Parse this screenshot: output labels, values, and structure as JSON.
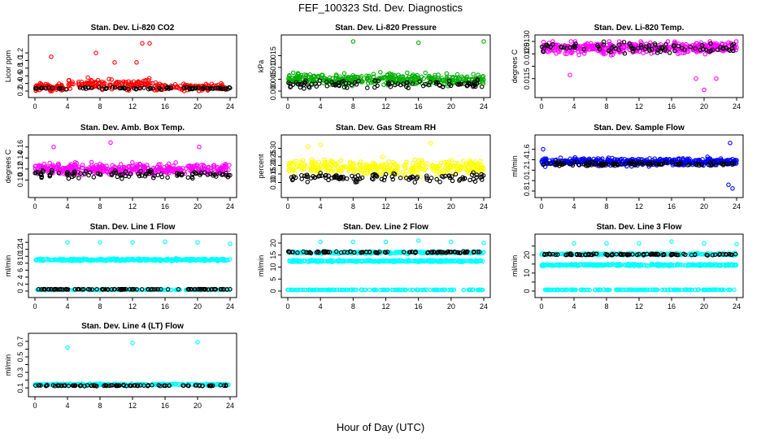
{
  "figure": {
    "title": "FEF_100323  Std. Dev. Diagnostics",
    "xlabel": "Hour of Day (UTC)"
  },
  "chart_data": [
    {
      "type": "scatter",
      "title": "Stan. Dev. Li-820 CO2",
      "ylabel": "Licor ppm",
      "xlim": [
        0,
        24
      ],
      "ylim": [
        0.2,
        1.5
      ],
      "xticks": [
        "0",
        "4",
        "8",
        "12",
        "16",
        "20",
        "24"
      ],
      "yticks": [
        0.2,
        0.4,
        0.6,
        0.8,
        1.0,
        1.2
      ],
      "ytick_labels": [
        "0.2",
        "0.4",
        "0.6",
        "0.8",
        "1.0",
        "1.2"
      ],
      "series": [
        {
          "color": "#ff0000",
          "n": 300,
          "base": 0.3,
          "noise": 0.12,
          "spread": 0.06,
          "hump": [
            4,
            15,
            0.15
          ],
          "outliers": [
            [
              2,
              1.1
            ],
            [
              7.5,
              1.2
            ],
            [
              13.2,
              1.45
            ],
            [
              14.1,
              1.45
            ],
            [
              9.8,
              0.95
            ],
            [
              12.5,
              0.95
            ]
          ]
        },
        {
          "color": "#000000",
          "n": 80,
          "base": 0.27,
          "noise": 0.04,
          "spread": 0.02
        }
      ]
    },
    {
      "type": "scatter",
      "title": "Stan. Dev. Li-820 Pressure",
      "ylabel": "kPa",
      "xlim": [
        0,
        24
      ],
      "ylim": [
        0,
        0.021
      ],
      "xticks": [
        "0",
        "4",
        "8",
        "12",
        "16",
        "20",
        "24"
      ],
      "yticks": [
        0.0,
        0.005,
        0.01,
        0.015
      ],
      "ytick_labels": [
        "0.000",
        "0.005",
        "0.010",
        "0.015"
      ],
      "series": [
        {
          "color": "#00b000",
          "n": 380,
          "base": 0.005,
          "noise": 0.003,
          "spread": 0.0012,
          "outliers": [
            [
              8,
              0.021
            ],
            [
              16,
              0.0205
            ],
            [
              24,
              0.021
            ]
          ]
        },
        {
          "color": "#000000",
          "n": 100,
          "base": 0.003,
          "noise": 0.0025,
          "spread": 0.001
        }
      ]
    },
    {
      "type": "scatter",
      "title": "Stan. Dev. Li-820 Temp.",
      "ylabel": "degrees C",
      "xlim": [
        0,
        24
      ],
      "ylim": [
        0.011,
        0.013
      ],
      "xticks": [
        "0",
        "4",
        "8",
        "12",
        "16",
        "20",
        "24"
      ],
      "yticks": [
        0.0115,
        0.012,
        0.0125,
        0.013
      ],
      "ytick_labels": [
        "0.0115",
        "",
        "0.0125",
        "0.0130"
      ],
      "series": [
        {
          "color": "#ff00ff",
          "n": 420,
          "base": 0.01275,
          "noise": 0.0003,
          "spread": 0.0002,
          "outliers": [
            [
              20,
              0.01105
            ],
            [
              19,
              0.0115
            ],
            [
              21.5,
              0.0115
            ],
            [
              3.5,
              0.01165
            ]
          ]
        },
        {
          "color": "#000000",
          "n": 90,
          "base": 0.01275,
          "noise": 0.0002,
          "spread": 0.0002
        }
      ]
    },
    {
      "type": "scatter",
      "title": "Stan. Dev. Amb. Box Temp.",
      "ylabel": "degrees C",
      "xlim": [
        0,
        24
      ],
      "ylim": [
        0.08,
        0.17
      ],
      "xticks": [
        "0",
        "4",
        "8",
        "12",
        "16",
        "20",
        "24"
      ],
      "yticks": [
        0.1,
        0.12,
        0.14,
        0.16
      ],
      "ytick_labels": [
        "0.10",
        "0.12",
        "0.14",
        "0.16"
      ],
      "series": [
        {
          "color": "#ff00ff",
          "n": 400,
          "base": 0.12,
          "noise": 0.013,
          "spread": 0.006,
          "outliers": [
            [
              9.3,
              0.168
            ],
            [
              2.3,
              0.16
            ],
            [
              20.2,
              0.16
            ]
          ]
        },
        {
          "color": "#000000",
          "n": 100,
          "base": 0.11,
          "noise": 0.01,
          "spread": 0.004
        }
      ]
    },
    {
      "type": "scatter",
      "title": "Stan. Dev. Gas Stream RH",
      "ylabel": "percent",
      "xlim": [
        0,
        24
      ],
      "ylim": [
        0.05,
        0.34
      ],
      "xticks": [
        "0",
        "4",
        "8",
        "12",
        "16",
        "20",
        "24"
      ],
      "yticks": [
        0.1,
        0.15,
        0.2,
        0.25,
        0.3
      ],
      "ytick_labels": [
        "0.10",
        "0.15",
        "0.20",
        "0.25",
        "0.30"
      ],
      "series": [
        {
          "color": "#ffff00",
          "n": 360,
          "base": 0.19,
          "noise": 0.06,
          "spread": 0.015,
          "outliers": [
            [
              17.5,
              0.33
            ],
            [
              4,
              0.32
            ],
            [
              2.5,
              0.31
            ]
          ]
        },
        {
          "color": "#000000",
          "n": 110,
          "base": 0.13,
          "noise": 0.04,
          "spread": 0.01
        }
      ]
    },
    {
      "type": "scatter",
      "title": "Stan. Dev. Sample Flow",
      "ylabel": "ml/min",
      "xlim": [
        0,
        24
      ],
      "ylim": [
        0.8,
        1.75
      ],
      "xticks": [
        "0",
        "4",
        "8",
        "12",
        "16",
        "20",
        "24"
      ],
      "yticks": [
        0.8,
        1.0,
        1.2,
        1.4,
        1.6
      ],
      "ytick_labels": [
        "0.8",
        "1.0",
        "1.2",
        "1.4",
        "1.6"
      ],
      "series": [
        {
          "color": "#0000ff",
          "n": 460,
          "base": 1.36,
          "noise": 0.09,
          "spread": 0.04,
          "outliers": [
            [
              23.2,
              1.72
            ],
            [
              23.5,
              0.85
            ],
            [
              23,
              0.92
            ],
            [
              0.2,
              1.6
            ]
          ]
        },
        {
          "color": "#000000",
          "n": 110,
          "base": 1.32,
          "noise": 0.05,
          "spread": 0.02
        }
      ]
    },
    {
      "type": "scatter",
      "title": "Stan. Dev. Line 1 Flow",
      "ylabel": "ml/min",
      "xlim": [
        0,
        24
      ],
      "ylim": [
        0,
        14.5
      ],
      "xticks": [
        "0",
        "4",
        "8",
        "12",
        "16",
        "20",
        "24"
      ],
      "yticks": [
        0,
        2,
        4,
        6,
        8,
        10,
        12,
        14
      ],
      "ytick_labels": [
        "0",
        "2",
        "4",
        "6",
        "8",
        "10",
        "12",
        "14"
      ],
      "series": [
        {
          "color": "#00ffff",
          "n": 380,
          "base": 9.0,
          "noise": 0.45,
          "spread": 0.1,
          "outliers": [
            [
              4,
              14
            ],
            [
              8,
              14
            ],
            [
              12,
              14
            ],
            [
              16,
              14.2
            ],
            [
              20,
              14
            ],
            [
              24,
              13.6
            ]
          ]
        },
        {
          "color": "#00ffff",
          "n": 140,
          "base": 0.35,
          "noise": 0.05,
          "spread": 0.02
        },
        {
          "color": "#000000",
          "n": 110,
          "base": 0.5,
          "noise": 0.05,
          "spread": 0.02
        }
      ]
    },
    {
      "type": "scatter",
      "title": "Stan. Dev. Line 2 Flow",
      "ylabel": "ml/min",
      "xlim": [
        0,
        24
      ],
      "ylim": [
        0,
        21
      ],
      "xticks": [
        "0",
        "4",
        "8",
        "12",
        "16",
        "20",
        "24"
      ],
      "yticks": [
        0,
        5,
        10,
        15,
        20
      ],
      "ytick_labels": [
        "0",
        "5",
        "10",
        "15",
        "20"
      ],
      "series": [
        {
          "color": "#00ffff",
          "n": 330,
          "base": 12.5,
          "noise": 0.55,
          "spread": 0.15
        },
        {
          "color": "#00ffff",
          "n": 230,
          "base": 16.0,
          "noise": 0.55,
          "spread": 0.15,
          "outliers": [
            [
              4,
              20.5
            ],
            [
              8,
              20.5
            ],
            [
              12,
              20.5
            ],
            [
              16,
              21
            ],
            [
              20,
              20.5
            ],
            [
              24,
              20
            ]
          ]
        },
        {
          "color": "#00ffff",
          "n": 160,
          "base": 0.5,
          "noise": 0.08,
          "spread": 0.03
        },
        {
          "color": "#000000",
          "n": 100,
          "base": 16.2,
          "noise": 0.5,
          "spread": 0.1
        }
      ]
    },
    {
      "type": "scatter",
      "title": "Stan. Dev. Line 3 Flow",
      "ylabel": "ml/min",
      "xlim": [
        0,
        24
      ],
      "ylim": [
        0,
        28
      ],
      "xticks": [
        "0",
        "4",
        "8",
        "12",
        "16",
        "20",
        "24"
      ],
      "yticks": [
        0,
        5,
        10,
        15,
        20,
        25
      ],
      "ytick_labels": [
        "0",
        "",
        "10",
        "",
        "20",
        ""
      ],
      "series": [
        {
          "color": "#00ffff",
          "n": 320,
          "base": 14.5,
          "noise": 0.7,
          "spread": 0.2
        },
        {
          "color": "#00ffff",
          "n": 230,
          "base": 20.5,
          "noise": 0.8,
          "spread": 0.2,
          "outliers": [
            [
              4,
              26.5
            ],
            [
              8,
              26.5
            ],
            [
              12,
              26.5
            ],
            [
              16,
              27.5
            ],
            [
              20,
              26.5
            ],
            [
              24,
              26
            ]
          ]
        },
        {
          "color": "#00ffff",
          "n": 160,
          "base": 0.7,
          "noise": 0.1,
          "spread": 0.03
        },
        {
          "color": "#000000",
          "n": 100,
          "base": 20.3,
          "noise": 0.6,
          "spread": 0.1
        }
      ]
    },
    {
      "type": "scatter",
      "title": "Stan. Dev. Line 4 (LT) Flow",
      "ylabel": "ml/min",
      "xlim": [
        0,
        24
      ],
      "ylim": [
        0.07,
        0.72
      ],
      "xticks": [
        "0",
        "4",
        "8",
        "12",
        "16",
        "20",
        "24"
      ],
      "yticks": [
        0.1,
        0.2,
        0.3,
        0.4,
        0.5,
        0.6,
        0.7
      ],
      "ytick_labels": [
        "0.1",
        "",
        "0.3",
        "",
        "0.5",
        "",
        "0.7"
      ],
      "series": [
        {
          "color": "#00ffff",
          "n": 260,
          "base": 0.145,
          "noise": 0.012,
          "spread": 0.006,
          "outliers": [
            [
              4,
              0.62
            ],
            [
              12,
              0.68
            ],
            [
              20,
              0.69
            ]
          ]
        },
        {
          "color": "#000000",
          "n": 100,
          "base": 0.13,
          "noise": 0.008,
          "spread": 0.004
        }
      ]
    }
  ]
}
